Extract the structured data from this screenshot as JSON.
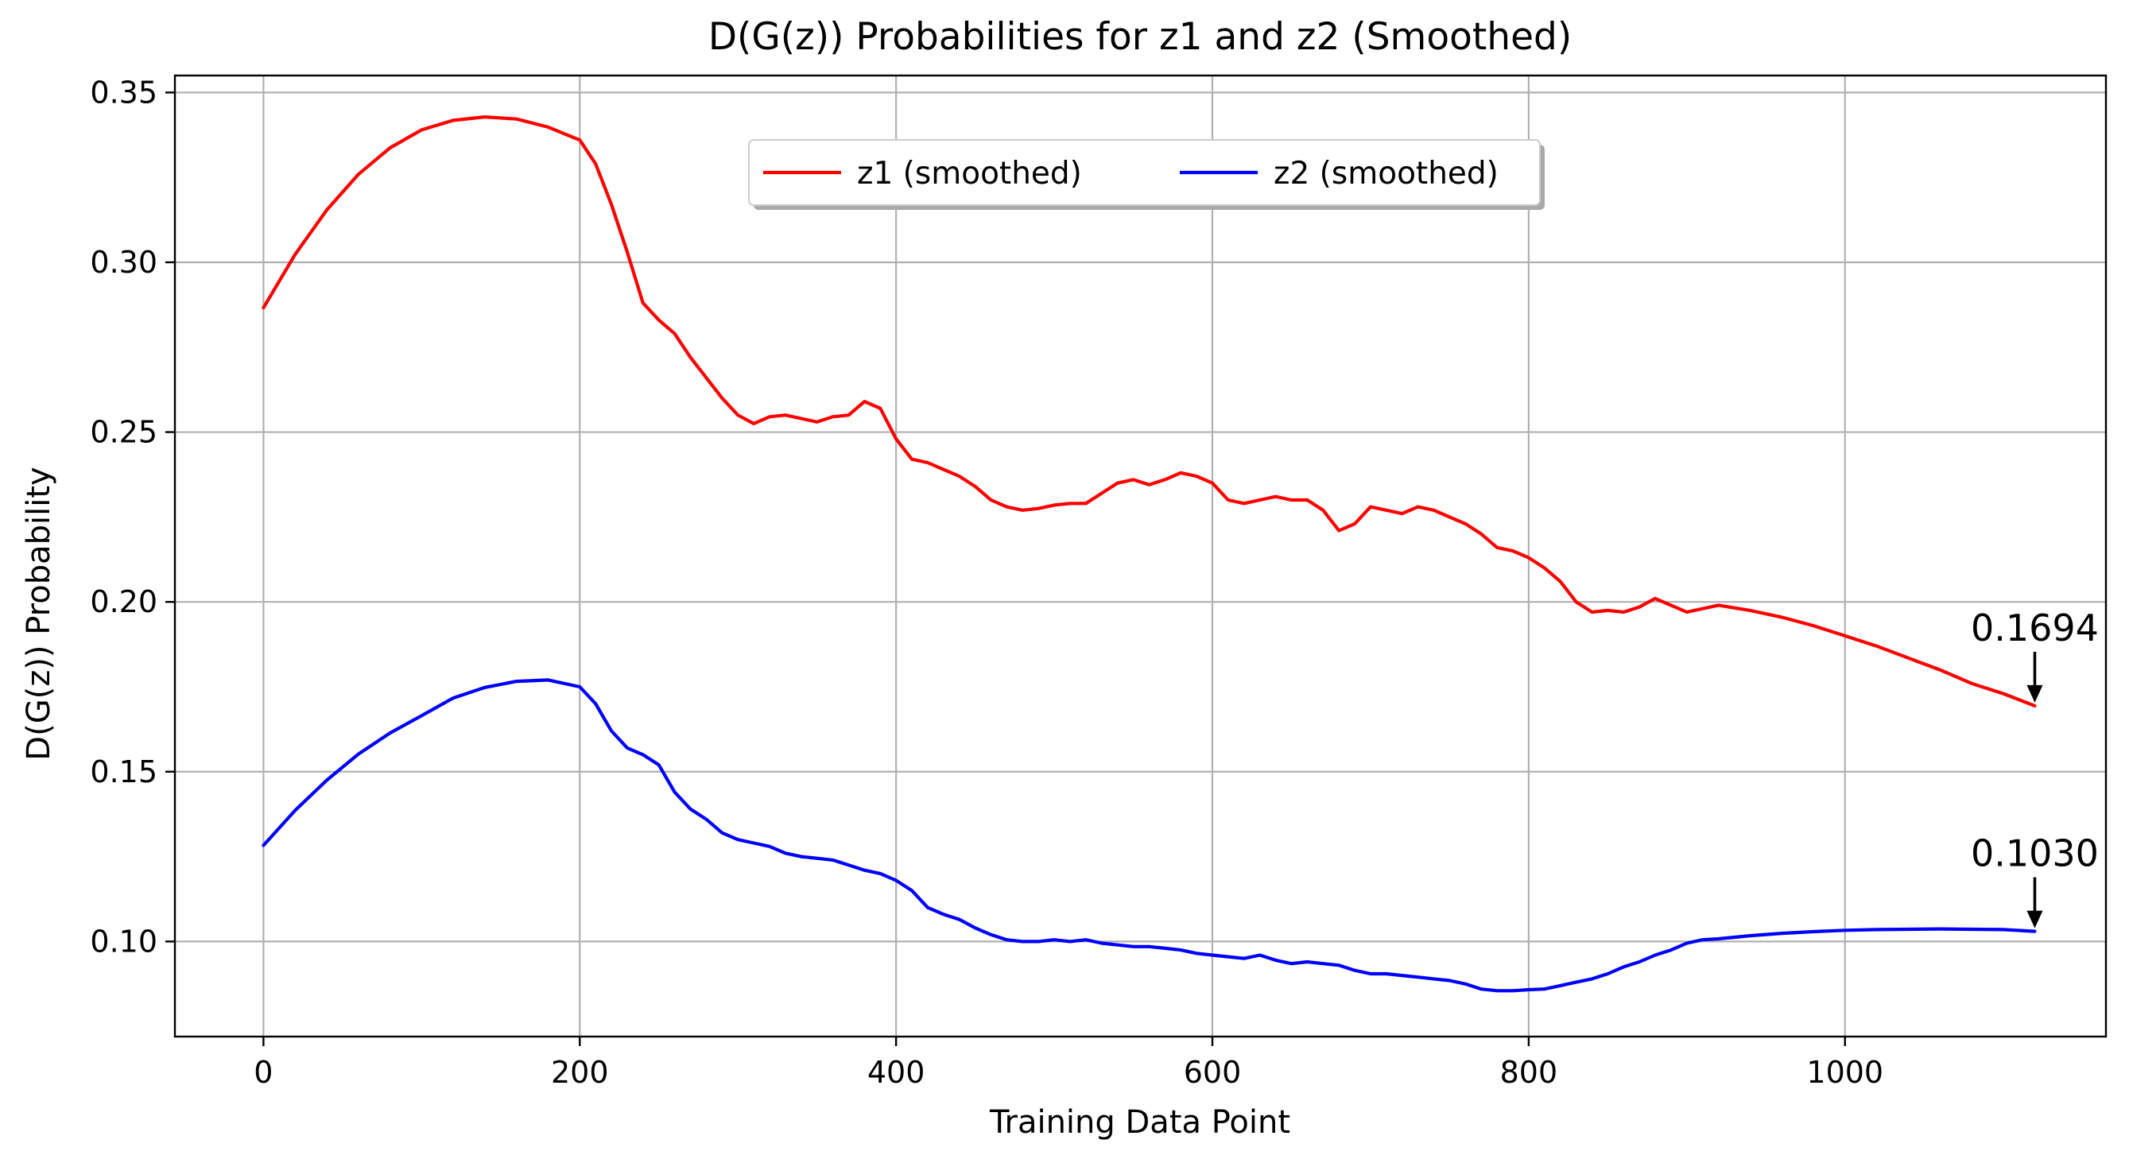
{
  "chart_data": {
    "type": "line",
    "title": "D(G(z)) Probabilities for z1 and z2 (Smoothed)",
    "xlabel": "Training Data Point",
    "ylabel": "D(G(z)) Probability",
    "xlim": [
      -56,
      1165
    ],
    "ylim": [
      0.072,
      0.355
    ],
    "xticks": [
      0,
      200,
      400,
      600,
      800,
      1000
    ],
    "xtick_labels": [
      "0",
      "200",
      "400",
      "600",
      "800",
      "1000"
    ],
    "yticks": [
      0.1,
      0.15,
      0.2,
      0.25,
      0.3,
      0.35
    ],
    "ytick_labels": [
      "0.10",
      "0.15",
      "0.20",
      "0.25",
      "0.30",
      "0.35"
    ],
    "grid": true,
    "legend_position": "upper-center",
    "series": [
      {
        "name": "z1 (smoothed)",
        "color": "#ff0000",
        "x": [
          0,
          20,
          40,
          60,
          80,
          100,
          120,
          140,
          160,
          180,
          200,
          210,
          220,
          230,
          240,
          250,
          260,
          270,
          280,
          290,
          300,
          310,
          320,
          330,
          340,
          350,
          360,
          370,
          380,
          390,
          400,
          410,
          420,
          430,
          440,
          450,
          460,
          470,
          480,
          490,
          500,
          510,
          520,
          530,
          540,
          550,
          560,
          570,
          580,
          590,
          600,
          610,
          620,
          630,
          640,
          650,
          660,
          670,
          680,
          690,
          700,
          710,
          720,
          730,
          740,
          750,
          760,
          770,
          780,
          790,
          800,
          810,
          820,
          830,
          840,
          850,
          860,
          870,
          880,
          890,
          900,
          910,
          920,
          940,
          960,
          980,
          1000,
          1020,
          1040,
          1060,
          1080,
          1100,
          1120
        ],
        "values": [
          0.2866,
          0.3023,
          0.3154,
          0.3259,
          0.3337,
          0.339,
          0.3418,
          0.3428,
          0.3422,
          0.3398,
          0.336,
          0.329,
          0.317,
          0.303,
          0.288,
          0.283,
          0.279,
          0.272,
          0.266,
          0.26,
          0.255,
          0.2525,
          0.2545,
          0.255,
          0.254,
          0.253,
          0.2545,
          0.255,
          0.259,
          0.257,
          0.248,
          0.242,
          0.241,
          0.239,
          0.237,
          0.234,
          0.23,
          0.228,
          0.227,
          0.2275,
          0.2285,
          0.229,
          0.229,
          0.232,
          0.235,
          0.236,
          0.2345,
          0.236,
          0.238,
          0.237,
          0.235,
          0.23,
          0.229,
          0.23,
          0.231,
          0.23,
          0.23,
          0.227,
          0.221,
          0.223,
          0.228,
          0.227,
          0.226,
          0.228,
          0.227,
          0.225,
          0.223,
          0.22,
          0.216,
          0.215,
          0.213,
          0.21,
          0.206,
          0.2,
          0.197,
          0.1975,
          0.197,
          0.1985,
          0.201,
          0.199,
          0.197,
          0.198,
          0.199,
          0.1975,
          0.1955,
          0.193,
          0.19,
          0.187,
          0.1835,
          0.18,
          0.176,
          0.173,
          0.1694
        ]
      },
      {
        "name": "z2 (smoothed)",
        "color": "#0000ff",
        "x": [
          0,
          20,
          40,
          60,
          80,
          100,
          120,
          140,
          160,
          180,
          200,
          210,
          220,
          230,
          240,
          250,
          260,
          270,
          280,
          290,
          300,
          310,
          320,
          330,
          340,
          350,
          360,
          370,
          380,
          390,
          400,
          410,
          420,
          430,
          440,
          450,
          460,
          470,
          480,
          490,
          500,
          510,
          520,
          530,
          540,
          550,
          560,
          570,
          580,
          590,
          600,
          610,
          620,
          630,
          640,
          650,
          660,
          670,
          680,
          690,
          700,
          710,
          720,
          730,
          740,
          750,
          760,
          770,
          780,
          790,
          800,
          810,
          820,
          830,
          840,
          850,
          860,
          870,
          880,
          890,
          900,
          910,
          920,
          940,
          960,
          980,
          1000,
          1020,
          1040,
          1060,
          1080,
          1100,
          1120
        ],
        "values": [
          0.1283,
          0.1386,
          0.1475,
          0.1552,
          0.1614,
          0.1665,
          0.1717,
          0.1748,
          0.1766,
          0.177,
          0.175,
          0.17,
          0.162,
          0.157,
          0.155,
          0.152,
          0.144,
          0.139,
          0.136,
          0.132,
          0.13,
          0.129,
          0.128,
          0.126,
          0.125,
          0.1245,
          0.124,
          0.1225,
          0.121,
          0.12,
          0.118,
          0.115,
          0.11,
          0.108,
          0.1065,
          0.104,
          0.102,
          0.1005,
          0.1,
          0.1,
          0.1005,
          0.1,
          0.1005,
          0.0995,
          0.099,
          0.0985,
          0.0985,
          0.098,
          0.0975,
          0.0965,
          0.096,
          0.0955,
          0.095,
          0.096,
          0.0945,
          0.0935,
          0.094,
          0.0935,
          0.093,
          0.0915,
          0.0905,
          0.0905,
          0.09,
          0.0895,
          0.089,
          0.0885,
          0.0875,
          0.086,
          0.0855,
          0.0855,
          0.0858,
          0.086,
          0.087,
          0.088,
          0.089,
          0.0905,
          0.0925,
          0.094,
          0.096,
          0.0975,
          0.0995,
          0.1005,
          0.1008,
          0.1017,
          0.1024,
          0.1029,
          0.1033,
          0.1035,
          0.1036,
          0.1037,
          0.1036,
          0.1035,
          0.103
        ]
      }
    ],
    "annotations": [
      {
        "text": "0.1694",
        "x": 1120,
        "y": 0.1694,
        "series": "z1 (smoothed)"
      },
      {
        "text": "0.1030",
        "x": 1120,
        "y": 0.103,
        "series": "z2 (smoothed)"
      }
    ]
  }
}
